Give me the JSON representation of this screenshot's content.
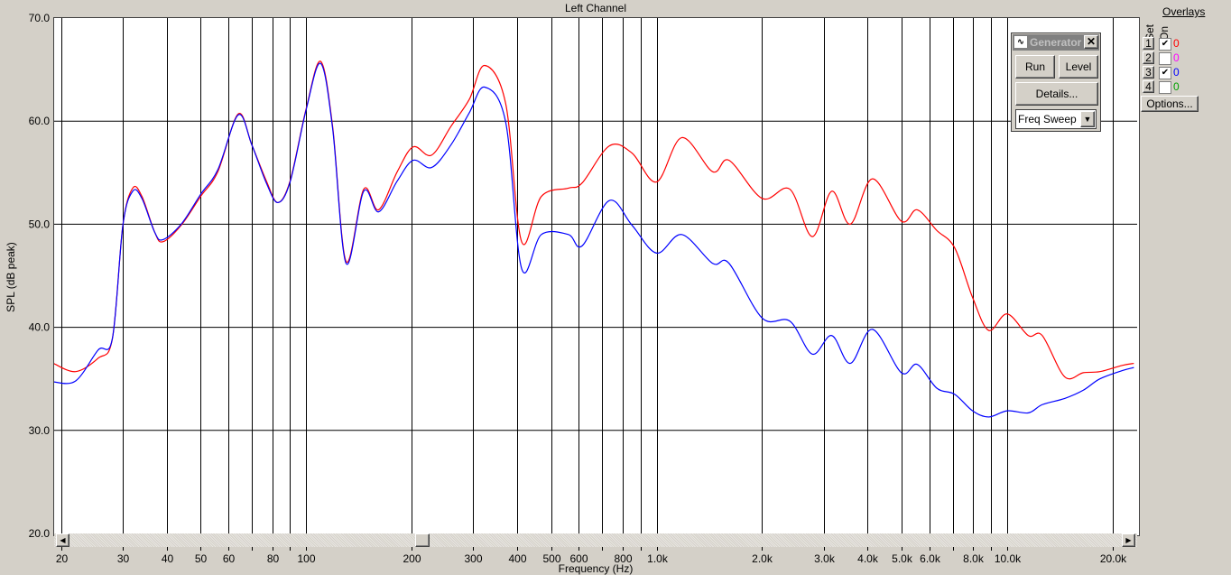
{
  "window": {
    "title": "Left Channel"
  },
  "generator": {
    "title": "Generator",
    "run": "Run",
    "level": "Level",
    "details": "Details...",
    "mode": "Freq Sweep",
    "icon": "waveform-icon"
  },
  "overlays": {
    "title": "Overlays",
    "set_label": "Set",
    "on_label": "On",
    "options": "Options...",
    "rows": [
      {
        "set": "1",
        "on": true,
        "value": "0",
        "color": "#ff0000"
      },
      {
        "set": "2",
        "on": false,
        "value": "0",
        "color": "#ff00ff"
      },
      {
        "set": "3",
        "on": true,
        "value": "0",
        "color": "#0000ff"
      },
      {
        "set": "4",
        "on": false,
        "value": "0",
        "color": "#00a000"
      }
    ]
  },
  "chart_data": {
    "type": "line",
    "title": "Left Channel",
    "xlabel": "Frequency (Hz)",
    "ylabel": "SPL (dB peak)",
    "xscale": "log",
    "xlim": [
      19.1,
      23500
    ],
    "ylim": [
      20,
      70
    ],
    "grid": true,
    "yticks": [
      {
        "v": 20,
        "label": "20.0"
      },
      {
        "v": 30,
        "label": "30.0"
      },
      {
        "v": 40,
        "label": "40.0"
      },
      {
        "v": 50,
        "label": "50.0"
      },
      {
        "v": 60,
        "label": "60.0"
      },
      {
        "v": 70,
        "label": "70.0"
      }
    ],
    "xticks": [
      {
        "v": 20,
        "label": "20"
      },
      {
        "v": 30,
        "label": "30"
      },
      {
        "v": 40,
        "label": "40"
      },
      {
        "v": 50,
        "label": "50"
      },
      {
        "v": 60,
        "label": "60"
      },
      {
        "v": 70,
        "label": ""
      },
      {
        "v": 80,
        "label": "80"
      },
      {
        "v": 90,
        "label": ""
      },
      {
        "v": 100,
        "label": "100"
      },
      {
        "v": 200,
        "label": "200"
      },
      {
        "v": 300,
        "label": "300"
      },
      {
        "v": 400,
        "label": "400"
      },
      {
        "v": 500,
        "label": "500"
      },
      {
        "v": 600,
        "label": "600"
      },
      {
        "v": 700,
        "label": ""
      },
      {
        "v": 800,
        "label": "800"
      },
      {
        "v": 900,
        "label": ""
      },
      {
        "v": 1000,
        "label": "1.0k"
      },
      {
        "v": 2000,
        "label": "2.0k"
      },
      {
        "v": 3000,
        "label": "3.0k"
      },
      {
        "v": 4000,
        "label": "4.0k"
      },
      {
        "v": 5000,
        "label": "5.0k"
      },
      {
        "v": 6000,
        "label": "6.0k"
      },
      {
        "v": 7000,
        "label": ""
      },
      {
        "v": 8000,
        "label": "8.0k"
      },
      {
        "v": 9000,
        "label": ""
      },
      {
        "v": 10000,
        "label": "10.0k"
      },
      {
        "v": 20000,
        "label": "20.0k"
      }
    ],
    "x": [
      19,
      22,
      25.5,
      28,
      30,
      32,
      34,
      37,
      39,
      44,
      50,
      56,
      64,
      70,
      77,
      83,
      90,
      100,
      110,
      119,
      130,
      146,
      161,
      182,
      202,
      228,
      259,
      292,
      323,
      371,
      412,
      469,
      560,
      613,
      733,
      851,
      1000,
      1180,
      1445,
      1610,
      2000,
      2400,
      2780,
      3160,
      3570,
      4130,
      4990,
      5540,
      6300,
      7090,
      7970,
      8860,
      10000,
      11500,
      12600,
      14600,
      16500,
      18400,
      21300,
      23000
    ],
    "series": [
      {
        "color": "#ff0000",
        "values": [
          36.5,
          35.7,
          37.0,
          38.9,
          49.9,
          53.5,
          52.7,
          49.2,
          48.3,
          49.9,
          52.7,
          55.1,
          60.7,
          57.7,
          54.2,
          52.1,
          54.2,
          61.2,
          65.8,
          59.5,
          46.4,
          53.4,
          51.4,
          55.1,
          57.5,
          56.7,
          59.5,
          62.1,
          65.4,
          61.7,
          48.3,
          52.7,
          53.5,
          54.0,
          57.6,
          56.9,
          54.1,
          58.4,
          55.1,
          56.2,
          52.5,
          53.4,
          48.8,
          53.2,
          50.0,
          54.4,
          50.3,
          51.4,
          49.4,
          47.7,
          42.9,
          39.7,
          41.3,
          39.2,
          39.2,
          35.2,
          35.6,
          35.7,
          36.3,
          36.5
        ]
      },
      {
        "color": "#0000ff",
        "values": [
          34.7,
          34.8,
          37.8,
          38.9,
          49.9,
          53.2,
          52.5,
          49.2,
          48.5,
          50.0,
          52.9,
          55.3,
          60.6,
          57.7,
          54.0,
          52.1,
          54.1,
          61.1,
          65.6,
          59.3,
          46.2,
          53.2,
          51.2,
          54.2,
          56.2,
          55.5,
          57.7,
          60.8,
          63.3,
          59.9,
          45.7,
          49.0,
          49.0,
          47.9,
          52.3,
          49.9,
          47.2,
          49.0,
          46.2,
          46.2,
          40.9,
          40.6,
          37.4,
          39.2,
          36.5,
          39.8,
          35.6,
          36.4,
          34.1,
          33.5,
          31.9,
          31.3,
          31.9,
          31.7,
          32.5,
          33.1,
          33.9,
          35.0,
          35.8,
          36.1
        ]
      }
    ]
  }
}
